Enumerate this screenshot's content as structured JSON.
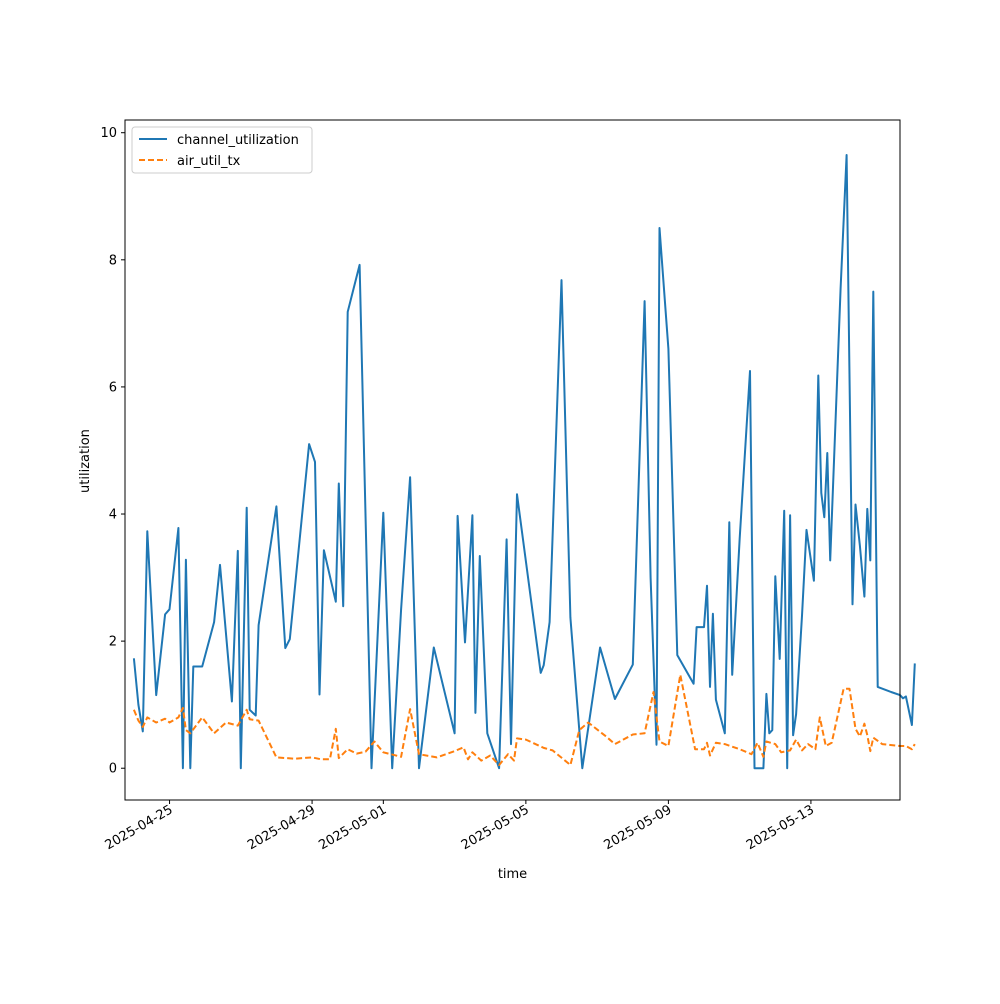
{
  "chart_data": {
    "type": "line",
    "title": "",
    "xlabel": "time",
    "ylabel": "utilization",
    "x_axis_type": "date",
    "xlim": [
      "2025-04-23T18:00",
      "2025-05-15T12:00"
    ],
    "ylim": [
      -0.5,
      10.2
    ],
    "xticks": [
      "2025-04-25",
      "2025-04-29",
      "2025-05-01",
      "2025-05-05",
      "2025-05-09",
      "2025-05-13"
    ],
    "yticks": [
      0,
      2,
      4,
      6,
      8,
      10
    ],
    "legend_position": "upper left",
    "grid": false,
    "series": [
      {
        "name": "channel_utilization",
        "color": "#1f77b4",
        "style": "solid",
        "points": [
          [
            "2025-04-24T00:00",
            1.73
          ],
          [
            "2025-04-24T03:00",
            1.0
          ],
          [
            "2025-04-24T06:00",
            0.58
          ],
          [
            "2025-04-24T09:00",
            3.73
          ],
          [
            "2025-04-24T15:00",
            1.15
          ],
          [
            "2025-04-24T21:00",
            2.42
          ],
          [
            "2025-04-25T00:00",
            2.5
          ],
          [
            "2025-04-25T06:00",
            3.78
          ],
          [
            "2025-04-25T09:00",
            0.0
          ],
          [
            "2025-04-25T11:00",
            3.28
          ],
          [
            "2025-04-25T14:00",
            0.0
          ],
          [
            "2025-04-25T16:00",
            1.6
          ],
          [
            "2025-04-25T22:00",
            1.6
          ],
          [
            "2025-04-26T06:00",
            2.3
          ],
          [
            "2025-04-26T10:00",
            3.2
          ],
          [
            "2025-04-26T18:00",
            1.05
          ],
          [
            "2025-04-26T22:00",
            3.42
          ],
          [
            "2025-04-27T00:00",
            0.0
          ],
          [
            "2025-04-27T04:00",
            4.1
          ],
          [
            "2025-04-27T06:00",
            0.92
          ],
          [
            "2025-04-27T10:00",
            0.83
          ],
          [
            "2025-04-27T12:00",
            2.25
          ],
          [
            "2025-04-28T00:00",
            4.12
          ],
          [
            "2025-04-28T06:00",
            1.89
          ],
          [
            "2025-04-28T09:00",
            2.03
          ],
          [
            "2025-04-28T22:00",
            5.1
          ],
          [
            "2025-04-29T02:00",
            4.82
          ],
          [
            "2025-04-29T05:00",
            1.16
          ],
          [
            "2025-04-29T08:00",
            3.43
          ],
          [
            "2025-04-29T16:00",
            2.62
          ],
          [
            "2025-04-29T18:00",
            4.48
          ],
          [
            "2025-04-29T21:00",
            2.55
          ],
          [
            "2025-04-30T00:00",
            7.18
          ],
          [
            "2025-04-30T08:00",
            7.92
          ],
          [
            "2025-04-30T16:00",
            0.0
          ],
          [
            "2025-05-01T00:00",
            4.02
          ],
          [
            "2025-05-01T06:00",
            0.0
          ],
          [
            "2025-05-01T12:00",
            2.5
          ],
          [
            "2025-05-01T18:00",
            4.58
          ],
          [
            "2025-05-02T00:00",
            0.0
          ],
          [
            "2025-05-02T10:00",
            1.9
          ],
          [
            "2025-05-03T00:00",
            0.55
          ],
          [
            "2025-05-03T02:00",
            3.97
          ],
          [
            "2025-05-03T07:00",
            1.98
          ],
          [
            "2025-05-03T12:00",
            3.98
          ],
          [
            "2025-05-03T14:00",
            0.87
          ],
          [
            "2025-05-03T17:00",
            3.34
          ],
          [
            "2025-05-03T22:00",
            0.55
          ],
          [
            "2025-05-04T06:00",
            0.0
          ],
          [
            "2025-05-04T11:00",
            3.6
          ],
          [
            "2025-05-04T14:00",
            0.38
          ],
          [
            "2025-05-04T18:00",
            4.31
          ],
          [
            "2025-05-05T10:00",
            1.5
          ],
          [
            "2025-05-05T12:00",
            1.62
          ],
          [
            "2025-05-05T16:00",
            2.3
          ],
          [
            "2025-05-06T00:00",
            7.68
          ],
          [
            "2025-05-06T06:00",
            2.37
          ],
          [
            "2025-05-06T14:00",
            0.0
          ],
          [
            "2025-05-07T02:00",
            1.9
          ],
          [
            "2025-05-07T12:00",
            1.09
          ],
          [
            "2025-05-08T00:00",
            1.63
          ],
          [
            "2025-05-08T08:00",
            7.35
          ],
          [
            "2025-05-08T12:00",
            3.0
          ],
          [
            "2025-05-08T16:00",
            0.37
          ],
          [
            "2025-05-08T18:00",
            8.5
          ],
          [
            "2025-05-09T00:00",
            6.6
          ],
          [
            "2025-05-09T06:00",
            1.78
          ],
          [
            "2025-05-09T17:00",
            1.33
          ],
          [
            "2025-05-09T19:00",
            2.22
          ],
          [
            "2025-05-10T00:00",
            2.22
          ],
          [
            "2025-05-10T02:00",
            2.87
          ],
          [
            "2025-05-10T04:00",
            1.28
          ],
          [
            "2025-05-10T06:00",
            2.43
          ],
          [
            "2025-05-10T08:00",
            1.08
          ],
          [
            "2025-05-10T14:00",
            0.55
          ],
          [
            "2025-05-10T17:00",
            3.87
          ],
          [
            "2025-05-10T19:00",
            1.47
          ],
          [
            "2025-05-11T00:00",
            3.62
          ],
          [
            "2025-05-11T07:00",
            6.25
          ],
          [
            "2025-05-11T10:00",
            0.0
          ],
          [
            "2025-05-11T16:00",
            0.0
          ],
          [
            "2025-05-11T18:00",
            1.17
          ],
          [
            "2025-05-11T20:00",
            0.55
          ],
          [
            "2025-05-11T22:00",
            0.6
          ],
          [
            "2025-05-12T00:00",
            3.02
          ],
          [
            "2025-05-12T03:00",
            1.72
          ],
          [
            "2025-05-12T06:00",
            4.05
          ],
          [
            "2025-05-12T08:00",
            0.0
          ],
          [
            "2025-05-12T10:00",
            3.98
          ],
          [
            "2025-05-12T12:00",
            0.52
          ],
          [
            "2025-05-12T14:00",
            0.85
          ],
          [
            "2025-05-12T18:00",
            2.4
          ],
          [
            "2025-05-12T21:00",
            3.75
          ],
          [
            "2025-05-13T02:00",
            2.95
          ],
          [
            "2025-05-13T05:00",
            6.18
          ],
          [
            "2025-05-13T07:00",
            4.33
          ],
          [
            "2025-05-13T09:00",
            3.95
          ],
          [
            "2025-05-13T11:00",
            4.96
          ],
          [
            "2025-05-13T13:00",
            3.27
          ],
          [
            "2025-05-13T20:00",
            7.55
          ],
          [
            "2025-05-14T00:00",
            9.65
          ],
          [
            "2025-05-14T04:00",
            2.58
          ],
          [
            "2025-05-14T06:00",
            4.15
          ],
          [
            "2025-05-14T09:00",
            3.5
          ],
          [
            "2025-05-14T12:00",
            2.7
          ],
          [
            "2025-05-14T14:00",
            4.08
          ],
          [
            "2025-05-14T16:00",
            3.27
          ],
          [
            "2025-05-14T18:00",
            7.5
          ],
          [
            "2025-05-14T21:00",
            1.28
          ],
          [
            "2025-05-15T06:00",
            1.2
          ],
          [
            "2025-05-15T12:00",
            1.15
          ],
          [
            "2025-05-15T14:00",
            1.1
          ],
          [
            "2025-05-15T16:00",
            1.13
          ],
          [
            "2025-05-15T20:00",
            0.68
          ],
          [
            "2025-05-15T22:00",
            1.65
          ]
        ]
      },
      {
        "name": "air_util_tx",
        "color": "#ff7f0e",
        "style": "dashed",
        "points": [
          [
            "2025-04-24T00:00",
            0.92
          ],
          [
            "2025-04-24T03:00",
            0.75
          ],
          [
            "2025-04-24T06:00",
            0.65
          ],
          [
            "2025-04-24T09:00",
            0.8
          ],
          [
            "2025-04-24T15:00",
            0.72
          ],
          [
            "2025-04-24T21:00",
            0.78
          ],
          [
            "2025-04-25T00:00",
            0.72
          ],
          [
            "2025-04-25T06:00",
            0.8
          ],
          [
            "2025-04-25T09:00",
            0.95
          ],
          [
            "2025-04-25T11:00",
            0.6
          ],
          [
            "2025-04-25T14:00",
            0.55
          ],
          [
            "2025-04-25T22:00",
            0.8
          ],
          [
            "2025-04-26T06:00",
            0.55
          ],
          [
            "2025-04-26T14:00",
            0.72
          ],
          [
            "2025-04-26T22:00",
            0.67
          ],
          [
            "2025-04-27T04:00",
            0.92
          ],
          [
            "2025-04-27T06:00",
            0.77
          ],
          [
            "2025-04-27T12:00",
            0.75
          ],
          [
            "2025-04-28T00:00",
            0.17
          ],
          [
            "2025-04-28T12:00",
            0.15
          ],
          [
            "2025-04-29T00:00",
            0.17
          ],
          [
            "2025-04-29T06:00",
            0.14
          ],
          [
            "2025-04-29T12:00",
            0.14
          ],
          [
            "2025-04-29T16:00",
            0.62
          ],
          [
            "2025-04-29T18:00",
            0.16
          ],
          [
            "2025-04-30T00:00",
            0.3
          ],
          [
            "2025-04-30T06:00",
            0.23
          ],
          [
            "2025-04-30T12:00",
            0.26
          ],
          [
            "2025-04-30T18:00",
            0.42
          ],
          [
            "2025-05-01T00:00",
            0.25
          ],
          [
            "2025-05-01T12:00",
            0.18
          ],
          [
            "2025-05-01T18:00",
            0.93
          ],
          [
            "2025-05-02T00:00",
            0.22
          ],
          [
            "2025-05-02T12:00",
            0.17
          ],
          [
            "2025-05-03T00:00",
            0.27
          ],
          [
            "2025-05-03T06:00",
            0.33
          ],
          [
            "2025-05-03T09:00",
            0.14
          ],
          [
            "2025-05-03T12:00",
            0.25
          ],
          [
            "2025-05-03T18:00",
            0.12
          ],
          [
            "2025-05-04T00:00",
            0.2
          ],
          [
            "2025-05-04T06:00",
            0.05
          ],
          [
            "2025-05-04T12:00",
            0.22
          ],
          [
            "2025-05-04T16:00",
            0.12
          ],
          [
            "2025-05-04T18:00",
            0.47
          ],
          [
            "2025-05-05T00:00",
            0.45
          ],
          [
            "2025-05-05T12:00",
            0.32
          ],
          [
            "2025-05-05T18:00",
            0.28
          ],
          [
            "2025-05-06T06:00",
            0.05
          ],
          [
            "2025-05-06T12:00",
            0.6
          ],
          [
            "2025-05-06T18:00",
            0.72
          ],
          [
            "2025-05-07T06:00",
            0.5
          ],
          [
            "2025-05-07T12:00",
            0.38
          ],
          [
            "2025-05-08T00:00",
            0.53
          ],
          [
            "2025-05-08T08:00",
            0.55
          ],
          [
            "2025-05-08T14:00",
            1.2
          ],
          [
            "2025-05-08T18:00",
            0.42
          ],
          [
            "2025-05-09T00:00",
            0.35
          ],
          [
            "2025-05-09T08:00",
            1.47
          ],
          [
            "2025-05-09T18:00",
            0.3
          ],
          [
            "2025-05-10T00:00",
            0.3
          ],
          [
            "2025-05-10T02:00",
            0.4
          ],
          [
            "2025-05-10T04:00",
            0.2
          ],
          [
            "2025-05-10T08:00",
            0.4
          ],
          [
            "2025-05-10T14:00",
            0.38
          ],
          [
            "2025-05-11T00:00",
            0.3
          ],
          [
            "2025-05-11T08:00",
            0.22
          ],
          [
            "2025-05-11T12:00",
            0.4
          ],
          [
            "2025-05-11T16:00",
            0.18
          ],
          [
            "2025-05-11T18:00",
            0.42
          ],
          [
            "2025-05-12T00:00",
            0.38
          ],
          [
            "2025-05-12T04:00",
            0.25
          ],
          [
            "2025-05-12T10:00",
            0.28
          ],
          [
            "2025-05-12T14:00",
            0.45
          ],
          [
            "2025-05-12T18:00",
            0.28
          ],
          [
            "2025-05-12T22:00",
            0.38
          ],
          [
            "2025-05-13T03:00",
            0.3
          ],
          [
            "2025-05-13T06:00",
            0.8
          ],
          [
            "2025-05-13T10:00",
            0.35
          ],
          [
            "2025-05-13T14:00",
            0.4
          ],
          [
            "2025-05-13T22:00",
            1.25
          ],
          [
            "2025-05-14T02:00",
            1.25
          ],
          [
            "2025-05-14T06:00",
            0.62
          ],
          [
            "2025-05-14T09:00",
            0.5
          ],
          [
            "2025-05-14T12:00",
            0.7
          ],
          [
            "2025-05-14T14:00",
            0.52
          ],
          [
            "2025-05-14T16:00",
            0.27
          ],
          [
            "2025-05-14T18:00",
            0.48
          ],
          [
            "2025-05-15T00:00",
            0.38
          ],
          [
            "2025-05-15T12:00",
            0.35
          ],
          [
            "2025-05-15T16:00",
            0.35
          ],
          [
            "2025-05-15T20:00",
            0.3
          ],
          [
            "2025-05-15T22:00",
            0.38
          ]
        ]
      }
    ]
  }
}
